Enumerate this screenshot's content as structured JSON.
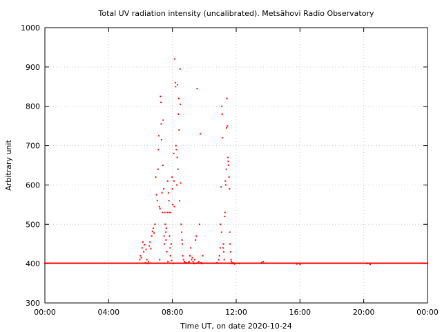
{
  "chart_data": {
    "type": "scatter",
    "title": "Total UV radiation intensity (uncalibrated). Metsähovi Radio Observatory",
    "xlabel": "Time UT, on date 2020-10-24",
    "ylabel": "Arbitrary unit",
    "xlim": [
      0,
      24
    ],
    "ylim": [
      300,
      1000
    ],
    "x_ticks": [
      {
        "value": 0,
        "label": "00:00"
      },
      {
        "value": 4,
        "label": "04:00"
      },
      {
        "value": 8,
        "label": "08:00"
      },
      {
        "value": 12,
        "label": "12:00"
      },
      {
        "value": 16,
        "label": "16:00"
      },
      {
        "value": 20,
        "label": "20:00"
      },
      {
        "value": 24,
        "label": "00:00"
      }
    ],
    "y_ticks": [
      300,
      400,
      500,
      600,
      700,
      800,
      900,
      1000
    ],
    "grid": true,
    "marker_color": "#ff0000",
    "series": [
      {
        "baseline": {
          "x_start": 0,
          "x_end": 24,
          "y": 401,
          "step": 0.06
        },
        "points": [
          [
            5.95,
            410
          ],
          [
            6.0,
            420
          ],
          [
            6.05,
            415
          ],
          [
            6.1,
            440
          ],
          [
            6.15,
            455
          ],
          [
            6.2,
            430
          ],
          [
            6.25,
            448
          ],
          [
            6.3,
            402
          ],
          [
            6.35,
            436
          ],
          [
            6.4,
            410
          ],
          [
            6.45,
            400
          ],
          [
            6.5,
            405
          ],
          [
            6.55,
            445
          ],
          [
            6.6,
            455
          ],
          [
            6.65,
            438
          ],
          [
            6.7,
            470
          ],
          [
            6.75,
            482
          ],
          [
            6.8,
            490
          ],
          [
            6.85,
            478
          ],
          [
            6.9,
            500
          ],
          [
            6.95,
            620
          ],
          [
            7.0,
            575
          ],
          [
            7.05,
            560
          ],
          [
            7.1,
            640
          ],
          [
            7.12,
            690
          ],
          [
            7.15,
            725
          ],
          [
            7.18,
            545
          ],
          [
            7.2,
            410
          ],
          [
            7.22,
            540
          ],
          [
            7.25,
            825
          ],
          [
            7.28,
            810
          ],
          [
            7.3,
            755
          ],
          [
            7.32,
            715
          ],
          [
            7.35,
            580
          ],
          [
            7.38,
            530
          ],
          [
            7.4,
            650
          ],
          [
            7.42,
            765
          ],
          [
            7.45,
            590
          ],
          [
            7.48,
            470
          ],
          [
            7.5,
            450
          ],
          [
            7.52,
            530
          ],
          [
            7.55,
            500
          ],
          [
            7.58,
            480
          ],
          [
            7.6,
            460
          ],
          [
            7.62,
            490
          ],
          [
            7.65,
            430
          ],
          [
            7.68,
            530
          ],
          [
            7.7,
            610
          ],
          [
            7.72,
            405
          ],
          [
            7.75,
            580
          ],
          [
            7.78,
            560
          ],
          [
            7.8,
            530
          ],
          [
            7.82,
            470
          ],
          [
            7.85,
            440
          ],
          [
            7.88,
            420
          ],
          [
            7.9,
            530
          ],
          [
            7.92,
            450
          ],
          [
            7.95,
            408
          ],
          [
            7.98,
            620
          ],
          [
            8.0,
            590
          ],
          [
            8.02,
            550
          ],
          [
            8.05,
            400
          ],
          [
            8.08,
            680
          ],
          [
            8.1,
            610
          ],
          [
            8.12,
            545
          ],
          [
            8.15,
            920
          ],
          [
            8.18,
            860
          ],
          [
            8.2,
            850
          ],
          [
            8.22,
            700
          ],
          [
            8.25,
            690
          ],
          [
            8.28,
            600
          ],
          [
            8.3,
            670
          ],
          [
            8.32,
            855
          ],
          [
            8.35,
            640
          ],
          [
            8.38,
            780
          ],
          [
            8.4,
            820
          ],
          [
            8.42,
            740
          ],
          [
            8.45,
            560
          ],
          [
            8.48,
            895
          ],
          [
            8.5,
            805
          ],
          [
            8.52,
            605
          ],
          [
            8.55,
            500
          ],
          [
            8.58,
            480
          ],
          [
            8.6,
            460
          ],
          [
            8.62,
            450
          ],
          [
            8.65,
            420
          ],
          [
            8.7,
            410
          ],
          [
            8.75,
            405
          ],
          [
            8.8,
            403
          ],
          [
            8.85,
            402
          ],
          [
            8.9,
            401
          ],
          [
            9.0,
            403
          ],
          [
            9.05,
            405
          ],
          [
            9.1,
            420
          ],
          [
            9.15,
            440
          ],
          [
            9.2,
            410
          ],
          [
            9.25,
            415
          ],
          [
            9.3,
            405
          ],
          [
            9.35,
            400
          ],
          [
            9.4,
            410
          ],
          [
            9.45,
            460
          ],
          [
            9.5,
            470
          ],
          [
            9.55,
            845
          ],
          [
            9.6,
            402
          ],
          [
            9.65,
            405
          ],
          [
            9.7,
            500
          ],
          [
            9.75,
            730
          ],
          [
            9.8,
            402
          ],
          [
            9.85,
            400
          ],
          [
            9.9,
            420
          ],
          [
            10.0,
            401
          ],
          [
            10.5,
            401
          ],
          [
            10.8,
            402
          ],
          [
            10.9,
            410
          ],
          [
            10.95,
            420
          ],
          [
            11.0,
            440
          ],
          [
            11.02,
            500
          ],
          [
            11.05,
            595
          ],
          [
            11.08,
            480
          ],
          [
            11.1,
            800
          ],
          [
            11.12,
            780
          ],
          [
            11.15,
            720
          ],
          [
            11.18,
            440
          ],
          [
            11.2,
            450
          ],
          [
            11.22,
            430
          ],
          [
            11.25,
            410
          ],
          [
            11.28,
            520
          ],
          [
            11.3,
            530
          ],
          [
            11.32,
            610
          ],
          [
            11.35,
            600
          ],
          [
            11.38,
            640
          ],
          [
            11.4,
            745
          ],
          [
            11.42,
            820
          ],
          [
            11.45,
            750
          ],
          [
            11.48,
            670
          ],
          [
            11.5,
            660
          ],
          [
            11.52,
            650
          ],
          [
            11.55,
            620
          ],
          [
            11.58,
            590
          ],
          [
            11.6,
            480
          ],
          [
            11.62,
            450
          ],
          [
            11.65,
            430
          ],
          [
            11.68,
            410
          ],
          [
            11.7,
            405
          ],
          [
            11.75,
            400
          ],
          [
            11.8,
            402
          ],
          [
            11.9,
            399
          ],
          [
            12.0,
            401
          ],
          [
            12.2,
            400
          ],
          [
            13.6,
            403
          ],
          [
            13.7,
            405
          ],
          [
            15.8,
            399
          ],
          [
            16.0,
            398
          ],
          [
            20.2,
            400
          ],
          [
            20.4,
            398
          ]
        ]
      }
    ]
  }
}
